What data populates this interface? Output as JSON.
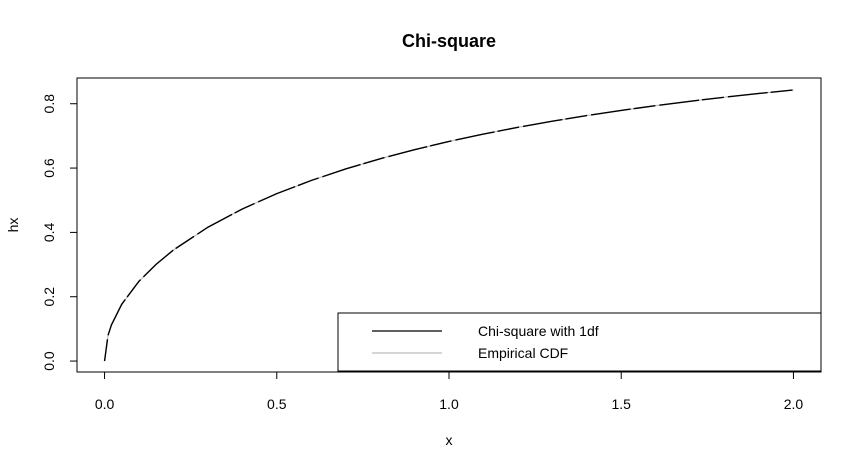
{
  "chart_data": {
    "type": "line",
    "title": "Chi-square",
    "xlabel": "x",
    "ylabel": "hx",
    "xlim": [
      -0.08,
      2.08
    ],
    "ylim": [
      -0.034,
      0.88
    ],
    "xticks": [
      0.0,
      0.5,
      1.0,
      1.5,
      2.0
    ],
    "xtick_labels": [
      "0.0",
      "0.5",
      "1.0",
      "1.5",
      "2.0"
    ],
    "yticks": [
      0.0,
      0.2,
      0.4,
      0.6,
      0.8
    ],
    "ytick_labels": [
      "0.0",
      "0.2",
      "0.4",
      "0.6",
      "0.8"
    ],
    "grid": false,
    "legend_position": "bottom-right",
    "series": [
      {
        "name": "Chi-square with 1df",
        "color": "#000000",
        "x": [
          0.0,
          0.01,
          0.02,
          0.05,
          0.1,
          0.15,
          0.2,
          0.3,
          0.4,
          0.5,
          0.6,
          0.7,
          0.8,
          0.9,
          1.0,
          1.1,
          1.2,
          1.3,
          1.4,
          1.5,
          1.6,
          1.7,
          1.8,
          1.9,
          2.0
        ],
        "values": [
          0.0,
          0.0797,
          0.1125,
          0.1769,
          0.2482,
          0.301,
          0.3453,
          0.4161,
          0.4729,
          0.5205,
          0.5614,
          0.5972,
          0.6289,
          0.6572,
          0.6827,
          0.7057,
          0.7267,
          0.7458,
          0.7633,
          0.7793,
          0.7941,
          0.8077,
          0.8203,
          0.8319,
          0.8427
        ]
      },
      {
        "name": "Empirical CDF",
        "color": "#bebebe",
        "x": [
          0.0,
          0.01,
          0.02,
          0.05,
          0.1,
          0.15,
          0.2,
          0.3,
          0.4,
          0.5,
          0.6,
          0.7,
          0.8,
          0.9,
          1.0,
          1.1,
          1.2,
          1.3,
          1.4,
          1.5,
          1.6,
          1.7,
          1.8,
          1.9,
          2.0
        ],
        "values": [
          0.0,
          0.0797,
          0.1125,
          0.1769,
          0.2482,
          0.301,
          0.3453,
          0.4161,
          0.4729,
          0.5205,
          0.5614,
          0.5972,
          0.6289,
          0.6572,
          0.6827,
          0.7057,
          0.7267,
          0.7458,
          0.7633,
          0.7793,
          0.7941,
          0.8077,
          0.8203,
          0.8319,
          0.8427
        ]
      }
    ]
  }
}
